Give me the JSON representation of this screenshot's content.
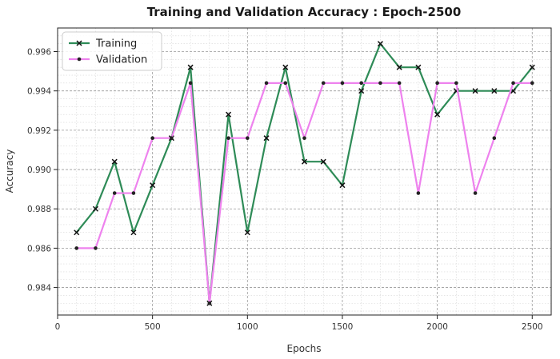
{
  "chart_data": {
    "type": "line",
    "title": "Training and Validation Accuracy : Epoch-2500",
    "xlabel": "Epochs",
    "ylabel": "Accuracy",
    "xlim": [
      0,
      2600
    ],
    "ylim": [
      0.9826,
      0.9972
    ],
    "xticks": [
      0,
      500,
      1000,
      1500,
      2000,
      2500
    ],
    "yticks": [
      0.984,
      0.986,
      0.988,
      0.99,
      0.992,
      0.994,
      0.996
    ],
    "ytick_labels": [
      "0.984",
      "0.986",
      "0.988",
      "0.990",
      "0.992",
      "0.994",
      "0.996"
    ],
    "grid": true,
    "legend_position": "top-left",
    "x": [
      100,
      200,
      300,
      400,
      500,
      600,
      700,
      800,
      900,
      1000,
      1100,
      1200,
      1300,
      1400,
      1500,
      1600,
      1700,
      1800,
      1900,
      2000,
      2100,
      2200,
      2300,
      2400,
      2500
    ],
    "series": [
      {
        "name": "Training",
        "color": "#2e8b57",
        "marker": "x",
        "values": [
          0.9868,
          0.988,
          0.9904,
          0.9868,
          0.9892,
          0.9916,
          0.9952,
          0.9832,
          0.9928,
          0.9868,
          0.9916,
          0.9952,
          0.9904,
          0.9904,
          0.9892,
          0.994,
          0.9964,
          0.9952,
          0.9952,
          0.9928,
          0.994,
          0.994,
          0.994,
          0.994,
          0.9952
        ]
      },
      {
        "name": "Validation",
        "color": "#ee82ee",
        "marker": "dot",
        "values": [
          0.986,
          0.986,
          0.9888,
          0.9888,
          0.9916,
          0.9916,
          0.9944,
          0.9832,
          0.9916,
          0.9916,
          0.9944,
          0.9944,
          0.9916,
          0.9944,
          0.9944,
          0.9944,
          0.9944,
          0.9944,
          0.9888,
          0.9944,
          0.9944,
          0.9888,
          0.9916,
          0.9944,
          0.9944
        ]
      }
    ]
  }
}
